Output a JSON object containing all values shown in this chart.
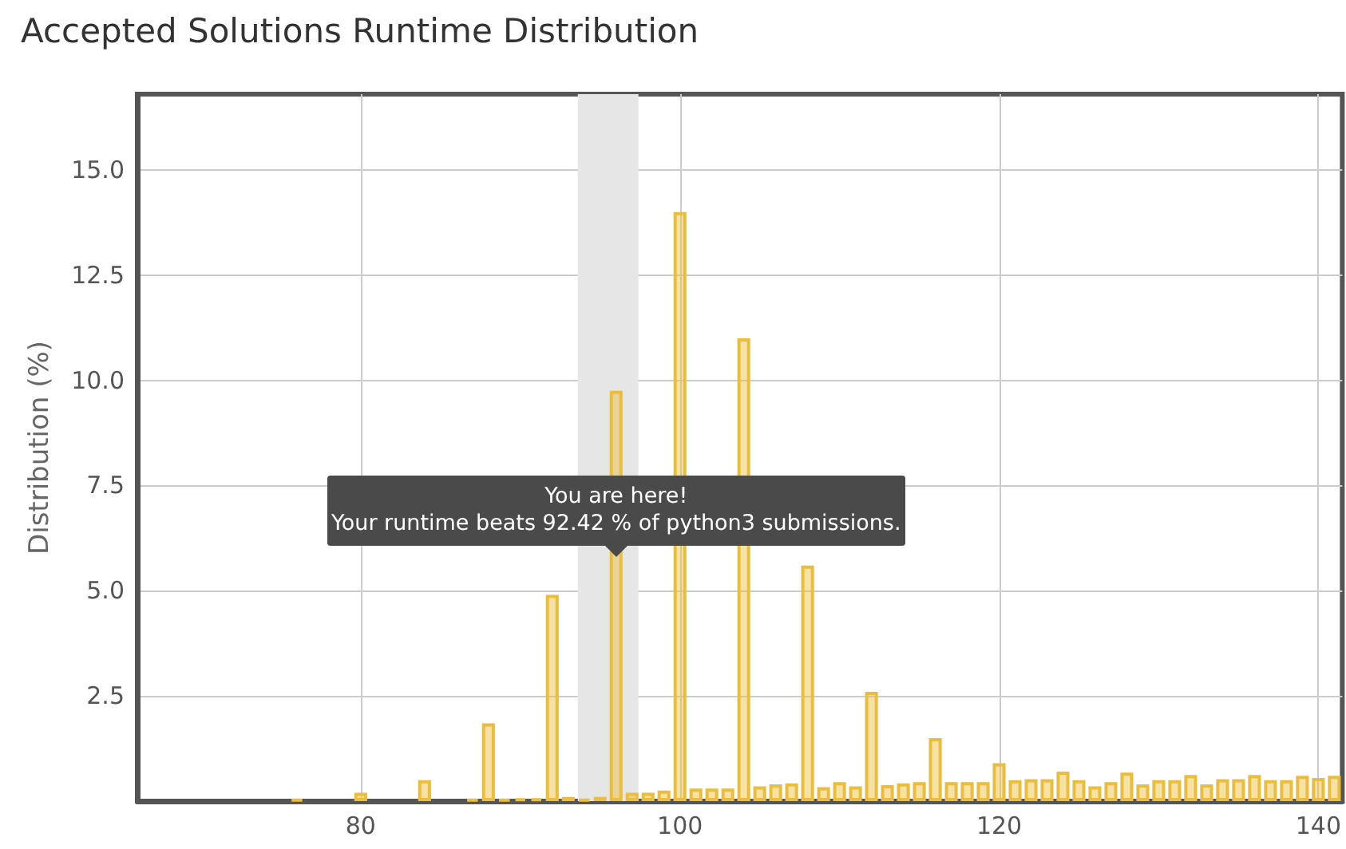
{
  "chart_data": {
    "type": "bar",
    "title": "Accepted Solutions Runtime Distribution",
    "ylabel": "Distribution (%)",
    "x": [
      76,
      80,
      84,
      87,
      88,
      89,
      90,
      91,
      92,
      93,
      94,
      95,
      96,
      97,
      98,
      99,
      100,
      101,
      102,
      103,
      104,
      105,
      106,
      107,
      108,
      109,
      110,
      111,
      112,
      113,
      114,
      115,
      116,
      117,
      118,
      119,
      120,
      121,
      122,
      123,
      124,
      125,
      126,
      127,
      128,
      129,
      130,
      131,
      132,
      133,
      134,
      135,
      136,
      137,
      138,
      139,
      140,
      141
    ],
    "values": [
      0.05,
      0.2,
      0.5,
      0.05,
      1.85,
      0.05,
      0.07,
      0.07,
      4.9,
      0.1,
      0.05,
      0.1,
      9.75,
      0.2,
      0.2,
      0.25,
      14.0,
      0.3,
      0.3,
      0.3,
      11.0,
      0.35,
      0.4,
      0.42,
      5.6,
      0.33,
      0.45,
      0.35,
      2.6,
      0.38,
      0.42,
      0.45,
      1.5,
      0.45,
      0.45,
      0.45,
      0.9,
      0.5,
      0.52,
      0.52,
      0.7,
      0.5,
      0.35,
      0.45,
      0.68,
      0.4,
      0.5,
      0.5,
      0.62,
      0.4,
      0.52,
      0.52,
      0.62,
      0.5,
      0.5,
      0.6,
      0.55,
      0.6
    ],
    "color": "#ebbd3c",
    "xlim": [
      66,
      141.5
    ],
    "xticks": [
      80,
      100,
      120,
      140
    ],
    "ylim": [
      0,
      16.8
    ],
    "yticks": [
      {
        "value": 2.5,
        "label": "2.5"
      },
      {
        "value": 5,
        "label": "5.0"
      },
      7.5,
      {
        "value": 10,
        "label": "10.0"
      },
      12.5,
      {
        "value": 15,
        "label": "15.0"
      }
    ],
    "grid": true,
    "bands": [
      {
        "axis": "x",
        "from": 93.6,
        "to": 97.4,
        "color": "#e6e6e6"
      }
    ],
    "annotations": [
      {
        "text": "You are here!\nYour runtime beats 92.42 % of python3 submissions.",
        "x": 96,
        "y": 5.8
      }
    ]
  }
}
